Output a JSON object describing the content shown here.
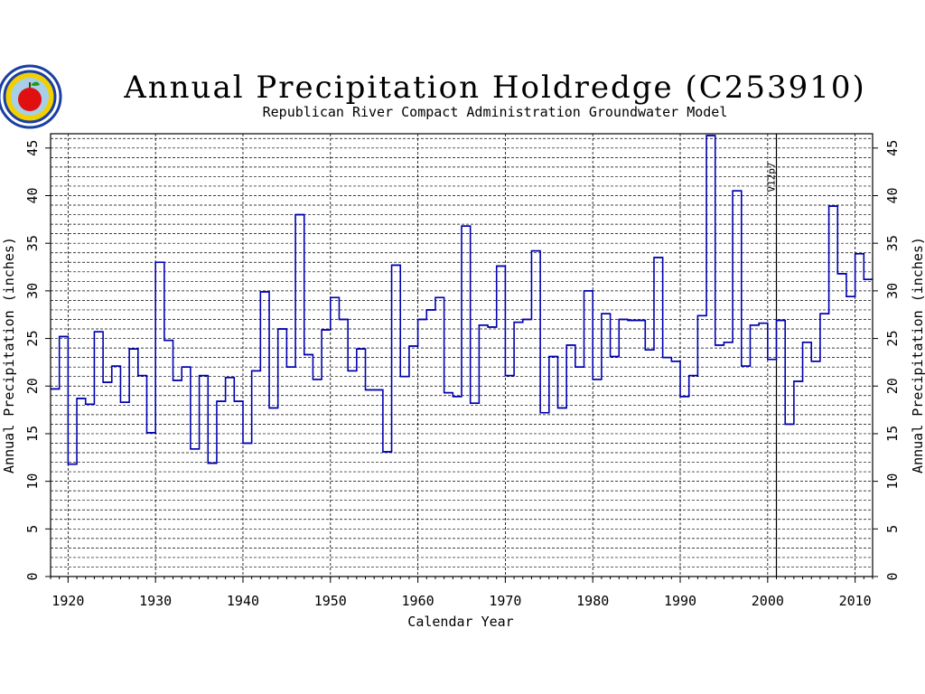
{
  "chart_data": {
    "type": "line",
    "step": true,
    "title": "Annual Precipitation Holdredge (C253910)",
    "subtitle": "Republican River Compact Administration Groundwater Model",
    "xlabel": "Calendar Year",
    "ylabel": "Annual Precipitation (inches)",
    "xlim": [
      1918,
      2012
    ],
    "ylim": [
      0,
      46.5
    ],
    "x_ticks": [
      1920,
      1930,
      1940,
      1950,
      1960,
      1970,
      1980,
      1990,
      2000,
      2010
    ],
    "y_ticks": [
      0,
      5,
      10,
      15,
      20,
      25,
      30,
      35,
      40,
      45
    ],
    "grid": true,
    "annotations": [
      {
        "label": "V12p7",
        "x": 2001
      }
    ],
    "series": [
      {
        "color": "#0000b0",
        "x": [
          1918,
          1919,
          1920,
          1921,
          1922,
          1923,
          1924,
          1925,
          1926,
          1927,
          1928,
          1929,
          1930,
          1931,
          1932,
          1933,
          1934,
          1935,
          1936,
          1937,
          1938,
          1939,
          1940,
          1941,
          1942,
          1943,
          1944,
          1945,
          1946,
          1947,
          1948,
          1949,
          1950,
          1951,
          1952,
          1953,
          1954,
          1955,
          1956,
          1957,
          1958,
          1959,
          1960,
          1961,
          1962,
          1963,
          1964,
          1965,
          1966,
          1967,
          1968,
          1969,
          1970,
          1971,
          1972,
          1973,
          1974,
          1975,
          1976,
          1977,
          1978,
          1979,
          1980,
          1981,
          1982,
          1983,
          1984,
          1985,
          1986,
          1987,
          1988,
          1989,
          1990,
          1991,
          1992,
          1993,
          1994,
          1995,
          1996,
          1997,
          1998,
          1999,
          2000,
          2001,
          2002,
          2003,
          2004,
          2005,
          2006,
          2007,
          2008,
          2009,
          2010,
          2011
        ],
        "values": [
          19.7,
          25.2,
          11.8,
          18.7,
          18.1,
          25.7,
          20.4,
          22.1,
          18.3,
          23.9,
          21.1,
          15.1,
          33.0,
          24.8,
          20.6,
          22.0,
          13.4,
          21.1,
          11.9,
          18.4,
          20.9,
          18.4,
          14.0,
          21.6,
          29.9,
          17.7,
          26.0,
          22.0,
          38.0,
          23.3,
          20.7,
          25.9,
          29.3,
          27.0,
          21.6,
          23.9,
          19.6,
          19.6,
          13.1,
          32.7,
          21.0,
          24.2,
          27.0,
          28.0,
          29.3,
          19.3,
          18.9,
          36.8,
          18.2,
          26.4,
          26.2,
          32.6,
          21.1,
          26.7,
          27.0,
          34.2,
          17.2,
          23.1,
          17.7,
          24.3,
          22.0,
          30.0,
          20.7,
          27.6,
          23.1,
          27.0,
          26.9,
          26.9,
          23.8,
          33.5,
          23.0,
          22.6,
          18.9,
          21.1,
          27.4,
          46.3,
          24.3,
          24.6,
          40.5,
          22.1,
          26.4,
          26.6,
          22.8,
          26.9,
          16.0,
          20.5,
          24.6,
          22.6,
          27.6,
          38.9,
          31.8,
          29.4,
          33.9,
          31.2
        ]
      }
    ]
  }
}
